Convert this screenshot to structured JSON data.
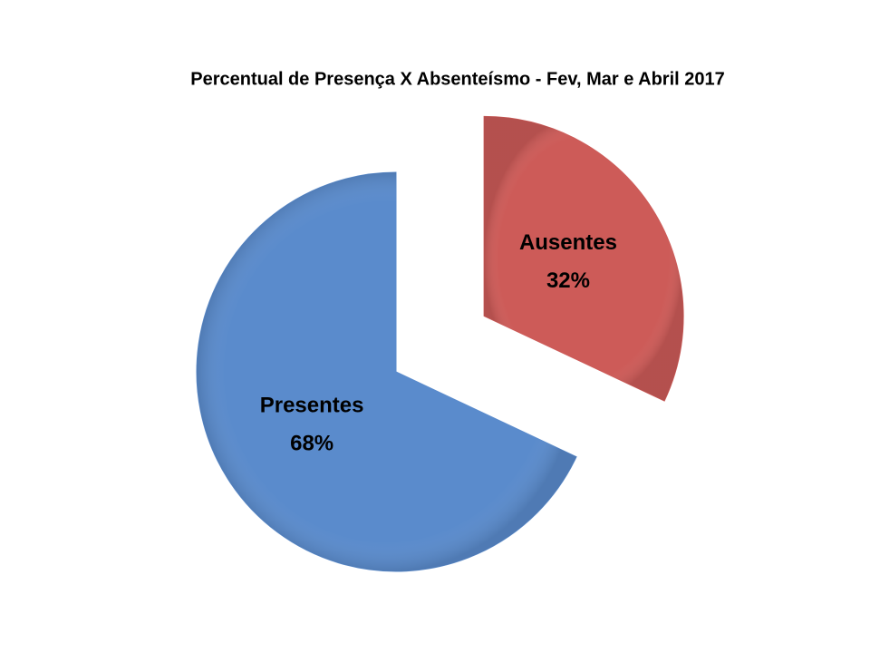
{
  "chart_data": {
    "type": "pie",
    "title": "Percentual de Presença X Absenteísmo - Fev, Mar e Abril 2017",
    "categories": [
      "Ausentes",
      "Presentes"
    ],
    "values": [
      32,
      68
    ],
    "value_labels": [
      "32%",
      "68%"
    ],
    "colors": [
      "#cd5b58",
      "#5a8bcc"
    ],
    "exploded": [
      true,
      false
    ]
  }
}
